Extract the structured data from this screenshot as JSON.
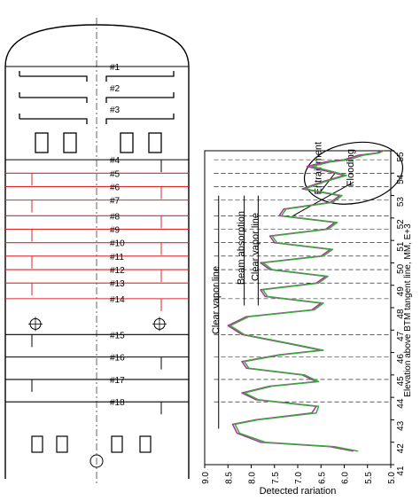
{
  "trays": [
    {
      "label": "#1",
      "elev": null
    },
    {
      "label": "#2",
      "elev": null
    },
    {
      "label": "#3",
      "elev": null
    },
    {
      "label": "#4",
      "elev": 54.6
    },
    {
      "label": "#5",
      "elev": 54.0
    },
    {
      "label": "#6",
      "elev": 53.4
    },
    {
      "label": "#7",
      "elev": 52.8
    },
    {
      "label": "#8",
      "elev": 52.1
    },
    {
      "label": "#9",
      "elev": 51.5
    },
    {
      "label": "#10",
      "elev": 50.9
    },
    {
      "label": "#11",
      "elev": 50.3
    },
    {
      "label": "#12",
      "elev": 49.7
    },
    {
      "label": "#13",
      "elev": 49.1
    },
    {
      "label": "#14",
      "elev": 48.4
    },
    {
      "label": "#15",
      "elev": 46.8
    },
    {
      "label": "#16",
      "elev": 45.8
    },
    {
      "label": "#17",
      "elev": 44.8
    },
    {
      "label": "#18",
      "elev": 43.8
    }
  ],
  "colors": {
    "red_trays": "#e0262a",
    "series_magenta": "#b02ea0",
    "series_green": "#3aa83a",
    "series_blue": "#2a55b0"
  },
  "chart_data": {
    "type": "line",
    "xlabel": "Detected rariation",
    "ylabel": "Elevation above BTM tangent line, MM, E+3",
    "xlim": [
      9.0,
      5.0
    ],
    "ylim": [
      41,
      55
    ],
    "x_ticks": [
      "9.0",
      "8.5",
      "8.0",
      "7.5",
      "7.0",
      "6.5",
      "6.0",
      "5.5",
      "5.0"
    ],
    "y_ticks": [
      "41",
      "42",
      "43",
      "44",
      "45",
      "46",
      "47",
      "48",
      "49",
      "50",
      "51",
      "52",
      "53",
      "54",
      "55"
    ],
    "annotations": [
      {
        "text": "Clear vapor line",
        "x": 8.7
      },
      {
        "text": "Beam absorption",
        "x": 8.15
      },
      {
        "text": "Clear vapor line",
        "x": 7.85
      },
      {
        "text": "Entrainment",
        "x": 6.5
      },
      {
        "text": "Flooding",
        "x": 5.8
      }
    ],
    "series": [
      {
        "color": "#b02ea0",
        "points": [
          [
            5.8,
            41.6
          ],
          [
            6.3,
            41.8
          ],
          [
            7.8,
            42.0
          ],
          [
            8.3,
            42.4
          ],
          [
            8.4,
            42.8
          ],
          [
            7.9,
            43.0
          ],
          [
            6.7,
            43.3
          ],
          [
            6.6,
            43.6
          ],
          [
            7.9,
            43.9
          ],
          [
            8.2,
            44.2
          ],
          [
            7.6,
            44.5
          ],
          [
            6.6,
            44.7
          ],
          [
            6.9,
            45.0
          ],
          [
            8.1,
            45.3
          ],
          [
            8.2,
            45.6
          ],
          [
            7.4,
            45.9
          ],
          [
            6.5,
            46.1
          ],
          [
            7.2,
            46.4
          ],
          [
            8.2,
            46.8
          ],
          [
            8.5,
            47.2
          ],
          [
            8.1,
            47.6
          ],
          [
            6.7,
            47.9
          ],
          [
            6.5,
            48.2
          ],
          [
            7.7,
            48.5
          ],
          [
            7.8,
            48.8
          ],
          [
            6.6,
            49.1
          ],
          [
            6.4,
            49.4
          ],
          [
            7.6,
            49.7
          ],
          [
            7.8,
            50.0
          ],
          [
            6.5,
            50.3
          ],
          [
            6.3,
            50.6
          ],
          [
            7.5,
            50.9
          ],
          [
            7.6,
            51.2
          ],
          [
            6.4,
            51.5
          ],
          [
            6.2,
            51.8
          ],
          [
            7.4,
            52.1
          ],
          [
            7.3,
            52.4
          ],
          [
            6.3,
            52.7
          ],
          [
            6.1,
            53.0
          ],
          [
            6.9,
            53.3
          ],
          [
            6.5,
            53.6
          ],
          [
            6.0,
            53.9
          ],
          [
            6.4,
            54.1
          ],
          [
            6.8,
            54.3
          ],
          [
            6.4,
            54.5
          ],
          [
            6.0,
            54.6
          ],
          [
            5.7,
            54.8
          ],
          [
            5.3,
            54.9
          ],
          [
            5.2,
            55.0
          ]
        ]
      },
      {
        "color": "#3aa83a",
        "points": [
          [
            5.7,
            41.6
          ],
          [
            6.2,
            41.8
          ],
          [
            7.7,
            42.0
          ],
          [
            8.25,
            42.4
          ],
          [
            8.35,
            42.8
          ],
          [
            7.85,
            43.0
          ],
          [
            6.6,
            43.3
          ],
          [
            6.55,
            43.6
          ],
          [
            7.85,
            43.9
          ],
          [
            8.15,
            44.2
          ],
          [
            7.55,
            44.5
          ],
          [
            6.55,
            44.7
          ],
          [
            6.85,
            45.0
          ],
          [
            8.05,
            45.3
          ],
          [
            8.15,
            45.6
          ],
          [
            7.35,
            45.9
          ],
          [
            6.45,
            46.1
          ],
          [
            7.15,
            46.4
          ],
          [
            8.15,
            46.8
          ],
          [
            8.45,
            47.2
          ],
          [
            8.05,
            47.6
          ],
          [
            6.65,
            47.9
          ],
          [
            6.45,
            48.2
          ],
          [
            7.65,
            48.5
          ],
          [
            7.75,
            48.8
          ],
          [
            6.55,
            49.1
          ],
          [
            6.35,
            49.4
          ],
          [
            7.55,
            49.7
          ],
          [
            7.75,
            50.0
          ],
          [
            6.45,
            50.3
          ],
          [
            6.25,
            50.6
          ],
          [
            7.45,
            50.9
          ],
          [
            7.55,
            51.2
          ],
          [
            6.35,
            51.5
          ],
          [
            6.15,
            51.8
          ],
          [
            7.35,
            52.1
          ],
          [
            7.25,
            52.4
          ],
          [
            6.25,
            52.7
          ],
          [
            6.05,
            53.0
          ],
          [
            6.85,
            53.3
          ],
          [
            6.45,
            53.6
          ],
          [
            5.95,
            53.9
          ],
          [
            6.3,
            54.1
          ],
          [
            6.7,
            54.3
          ],
          [
            6.3,
            54.5
          ],
          [
            5.9,
            54.6
          ],
          [
            5.6,
            54.8
          ],
          [
            5.25,
            54.9
          ],
          [
            5.15,
            55.0
          ]
        ]
      }
    ]
  }
}
